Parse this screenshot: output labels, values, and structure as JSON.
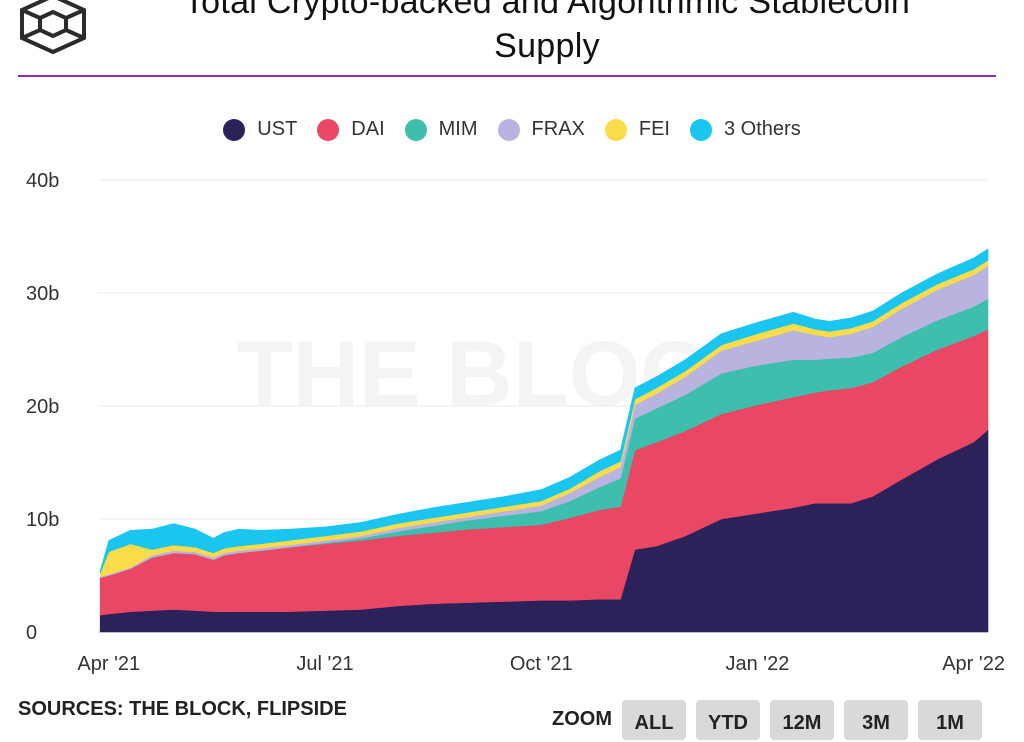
{
  "header": {
    "title_line1": "Total Crypto-backed and Algorithmic Stablecoin",
    "title_line2": "Supply"
  },
  "watermark": "THE BLOCK",
  "footer": {
    "sources": "SOURCES: THE BLOCK, FLIPSIDE",
    "zoom_label": "ZOOM",
    "zoom_buttons": [
      "ALL",
      "YTD",
      "12M",
      "3M",
      "1M"
    ]
  },
  "colors": {
    "accent_rule": "#8e2bbf",
    "UST": "#2b2259",
    "DAI": "#ea4764",
    "MIM": "#3ebfad",
    "FRAX": "#b9b3e0",
    "FEI": "#fadb4a",
    "3 Others": "#1ac5ef"
  },
  "chart_data": {
    "type": "area",
    "stacked": true,
    "title": "Total Crypto-backed and Algorithmic Stablecoin Supply",
    "xlabel": "",
    "ylabel": "",
    "ylim": [
      0,
      40
    ],
    "yticks": [
      "0",
      "10b",
      "20b",
      "30b",
      "40b"
    ],
    "ytick_values": [
      0,
      10,
      20,
      30,
      40
    ],
    "x_ticks": [
      "Apr '21",
      "Jul '21",
      "Oct '21",
      "Jan '22",
      "Apr '22"
    ],
    "x_tick_months": [
      0,
      3,
      6,
      9,
      12
    ],
    "x_months_range": [
      -0.15,
      12.2
    ],
    "legend_position": "top-center",
    "units": "billions USD",
    "x": [
      -0.12,
      0,
      0.3,
      0.6,
      0.9,
      1.2,
      1.45,
      1.6,
      1.8,
      2.1,
      2.5,
      3.0,
      3.5,
      4.0,
      4.5,
      5.0,
      5.5,
      6.0,
      6.4,
      6.8,
      7.1,
      7.3,
      7.6,
      8.0,
      8.5,
      9.0,
      9.5,
      9.8,
      10.0,
      10.3,
      10.6,
      11.0,
      11.5,
      12.0,
      12.2
    ],
    "series": [
      {
        "name": "UST",
        "values": [
          1.5,
          1.6,
          1.8,
          1.9,
          2.0,
          1.9,
          1.8,
          1.8,
          1.8,
          1.8,
          1.8,
          1.9,
          2.0,
          2.3,
          2.5,
          2.6,
          2.7,
          2.8,
          2.8,
          2.9,
          2.9,
          7.3,
          7.6,
          8.5,
          10.0,
          10.5,
          11.0,
          11.4,
          11.4,
          11.4,
          12.0,
          13.5,
          15.3,
          16.8,
          17.9
        ]
      },
      {
        "name": "DAI",
        "values": [
          3.3,
          3.4,
          3.8,
          4.7,
          5.0,
          5.0,
          4.6,
          5.0,
          5.2,
          5.4,
          5.7,
          5.9,
          6.1,
          6.2,
          6.3,
          6.5,
          6.6,
          6.7,
          7.3,
          7.9,
          8.2,
          8.8,
          9.2,
          9.3,
          9.3,
          9.6,
          9.8,
          9.8,
          10.0,
          10.2,
          10.1,
          10.0,
          9.7,
          9.4,
          8.9
        ]
      },
      {
        "name": "MIM",
        "values": [
          0.0,
          0.0,
          0.0,
          0.0,
          0.0,
          0.0,
          0.0,
          0.0,
          0.0,
          0.0,
          0.0,
          0.1,
          0.2,
          0.4,
          0.6,
          0.8,
          1.0,
          1.2,
          1.5,
          2.0,
          2.5,
          2.8,
          3.0,
          3.2,
          3.6,
          3.5,
          3.3,
          2.9,
          2.8,
          2.7,
          2.6,
          2.6,
          2.6,
          2.6,
          2.7
        ]
      },
      {
        "name": "FRAX",
        "values": [
          0.1,
          0.1,
          0.1,
          0.2,
          0.2,
          0.2,
          0.2,
          0.2,
          0.2,
          0.2,
          0.2,
          0.2,
          0.2,
          0.3,
          0.3,
          0.3,
          0.4,
          0.5,
          0.7,
          0.9,
          1.0,
          1.2,
          1.3,
          1.6,
          2.0,
          2.2,
          2.6,
          2.2,
          1.9,
          2.1,
          2.3,
          2.5,
          2.7,
          2.8,
          2.9
        ]
      },
      {
        "name": "FEI",
        "values": [
          0.3,
          2.0,
          2.1,
          0.5,
          0.5,
          0.4,
          0.4,
          0.4,
          0.4,
          0.4,
          0.4,
          0.4,
          0.4,
          0.4,
          0.4,
          0.4,
          0.4,
          0.4,
          0.4,
          0.5,
          0.5,
          0.5,
          0.5,
          0.5,
          0.5,
          0.6,
          0.6,
          0.5,
          0.5,
          0.5,
          0.5,
          0.5,
          0.5,
          0.5,
          0.5
        ]
      },
      {
        "name": "3 Others",
        "values": [
          0.2,
          1.0,
          1.2,
          1.8,
          1.9,
          1.6,
          1.3,
          1.4,
          1.5,
          1.2,
          1.0,
          0.8,
          0.8,
          0.8,
          0.9,
          0.9,
          0.9,
          1.0,
          1.0,
          1.0,
          1.0,
          1.0,
          1.0,
          1.0,
          1.0,
          1.0,
          1.0,
          0.9,
          0.9,
          0.9,
          0.9,
          0.9,
          0.9,
          1.0,
          1.0
        ]
      }
    ]
  }
}
